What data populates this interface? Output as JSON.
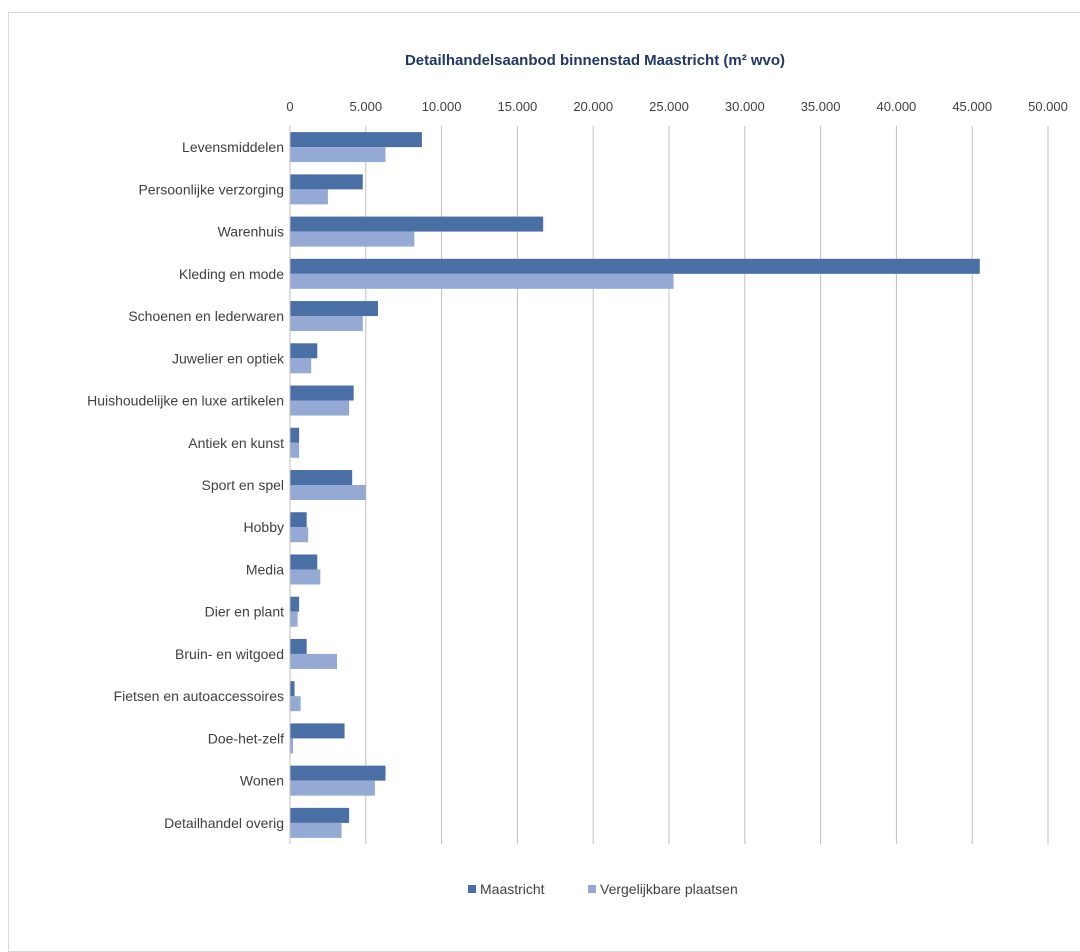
{
  "chart_data": {
    "type": "bar",
    "orientation": "horizontal",
    "title": "Detailhandelsaanbod  binnenstad Maastricht (m² wvo)",
    "xlim": [
      0,
      50000
    ],
    "x_ticks": [
      "0",
      "5.000",
      "10.000",
      "15.000",
      "20.000",
      "25.000",
      "30.000",
      "35.000",
      "40.000",
      "45.000",
      "50.000"
    ],
    "x_tick_values": [
      0,
      5000,
      10000,
      15000,
      20000,
      25000,
      30000,
      35000,
      40000,
      45000,
      50000
    ],
    "x_axis_position": "top",
    "grid": true,
    "legend_position": "bottom",
    "categories": [
      "Levensmiddelen",
      "Persoonlijke verzorging",
      "Warenhuis",
      "Kleding en mode",
      "Schoenen en lederwaren",
      "Juwelier en optiek",
      "Huishoudelijke en luxe artikelen",
      "Antiek en kunst",
      "Sport en spel",
      "Hobby",
      "Media",
      "Dier en plant",
      "Bruin- en witgoed",
      "Fietsen en autoaccessoires",
      "Doe-het-zelf",
      "Wonen",
      "Detailhandel overig"
    ],
    "series": [
      {
        "name": "Maastricht",
        "color": "#4a6fa5",
        "values": [
          8700,
          4800,
          16700,
          45500,
          5800,
          1800,
          4200,
          600,
          4100,
          1100,
          1800,
          600,
          1100,
          300,
          3600,
          6300,
          3900
        ]
      },
      {
        "name": "Vergelijkbare plaatsen",
        "color": "#94a9d4",
        "values": [
          6300,
          2500,
          8200,
          25300,
          4800,
          1400,
          3900,
          600,
          5000,
          1200,
          2000,
          500,
          3100,
          700,
          200,
          5600,
          3400
        ]
      }
    ]
  }
}
